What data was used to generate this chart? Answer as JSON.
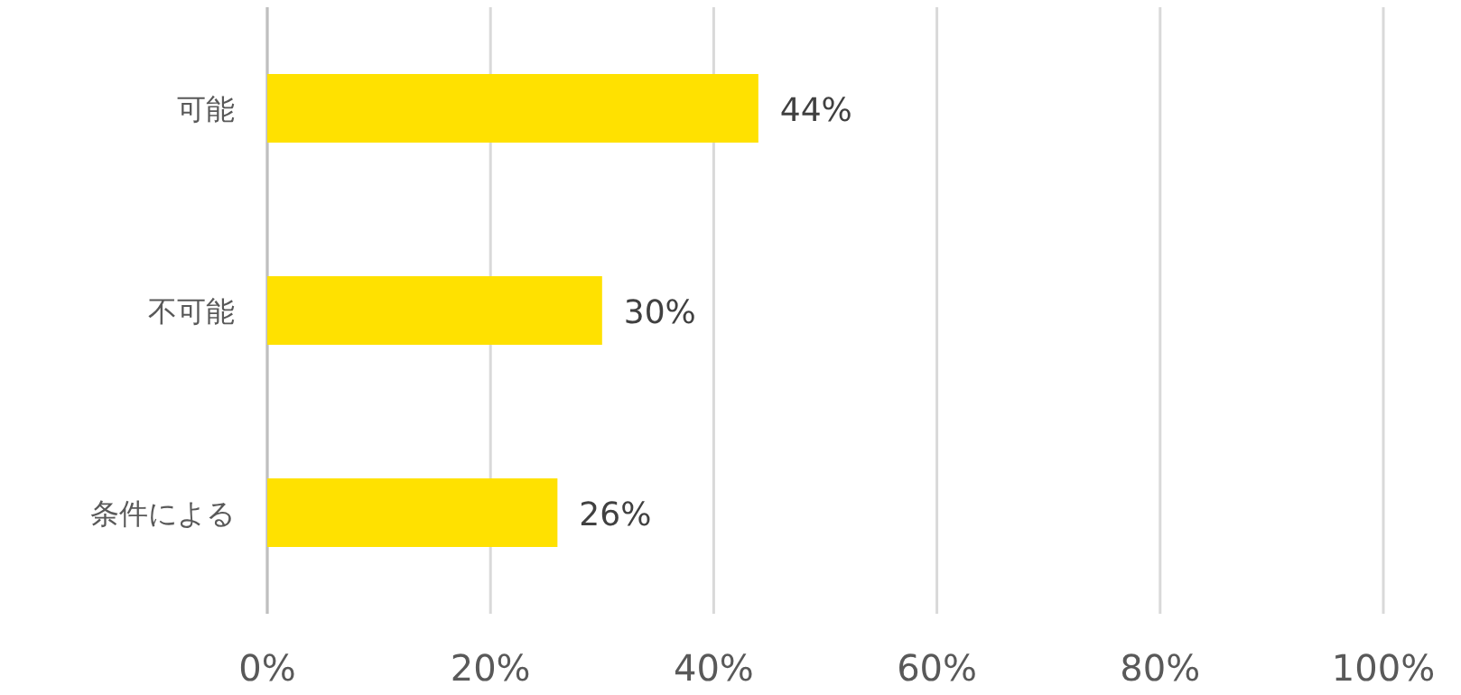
{
  "chart_data": {
    "type": "bar",
    "orientation": "horizontal",
    "categories": [
      "可能",
      "不可能",
      "条件による"
    ],
    "values": [
      44,
      30,
      26
    ],
    "value_labels": [
      "44%",
      "30%",
      "26%"
    ],
    "color": "#ffe100",
    "xlim": [
      0,
      100
    ],
    "xticks": [
      {
        "value": 0,
        "label": "0%"
      },
      {
        "value": 20,
        "label": "20%"
      },
      {
        "value": 40,
        "label": "40%"
      },
      {
        "value": 60,
        "label": "60%"
      },
      {
        "value": 80,
        "label": "80%"
      },
      {
        "value": 100,
        "label": "100%"
      }
    ],
    "grid": "x"
  }
}
